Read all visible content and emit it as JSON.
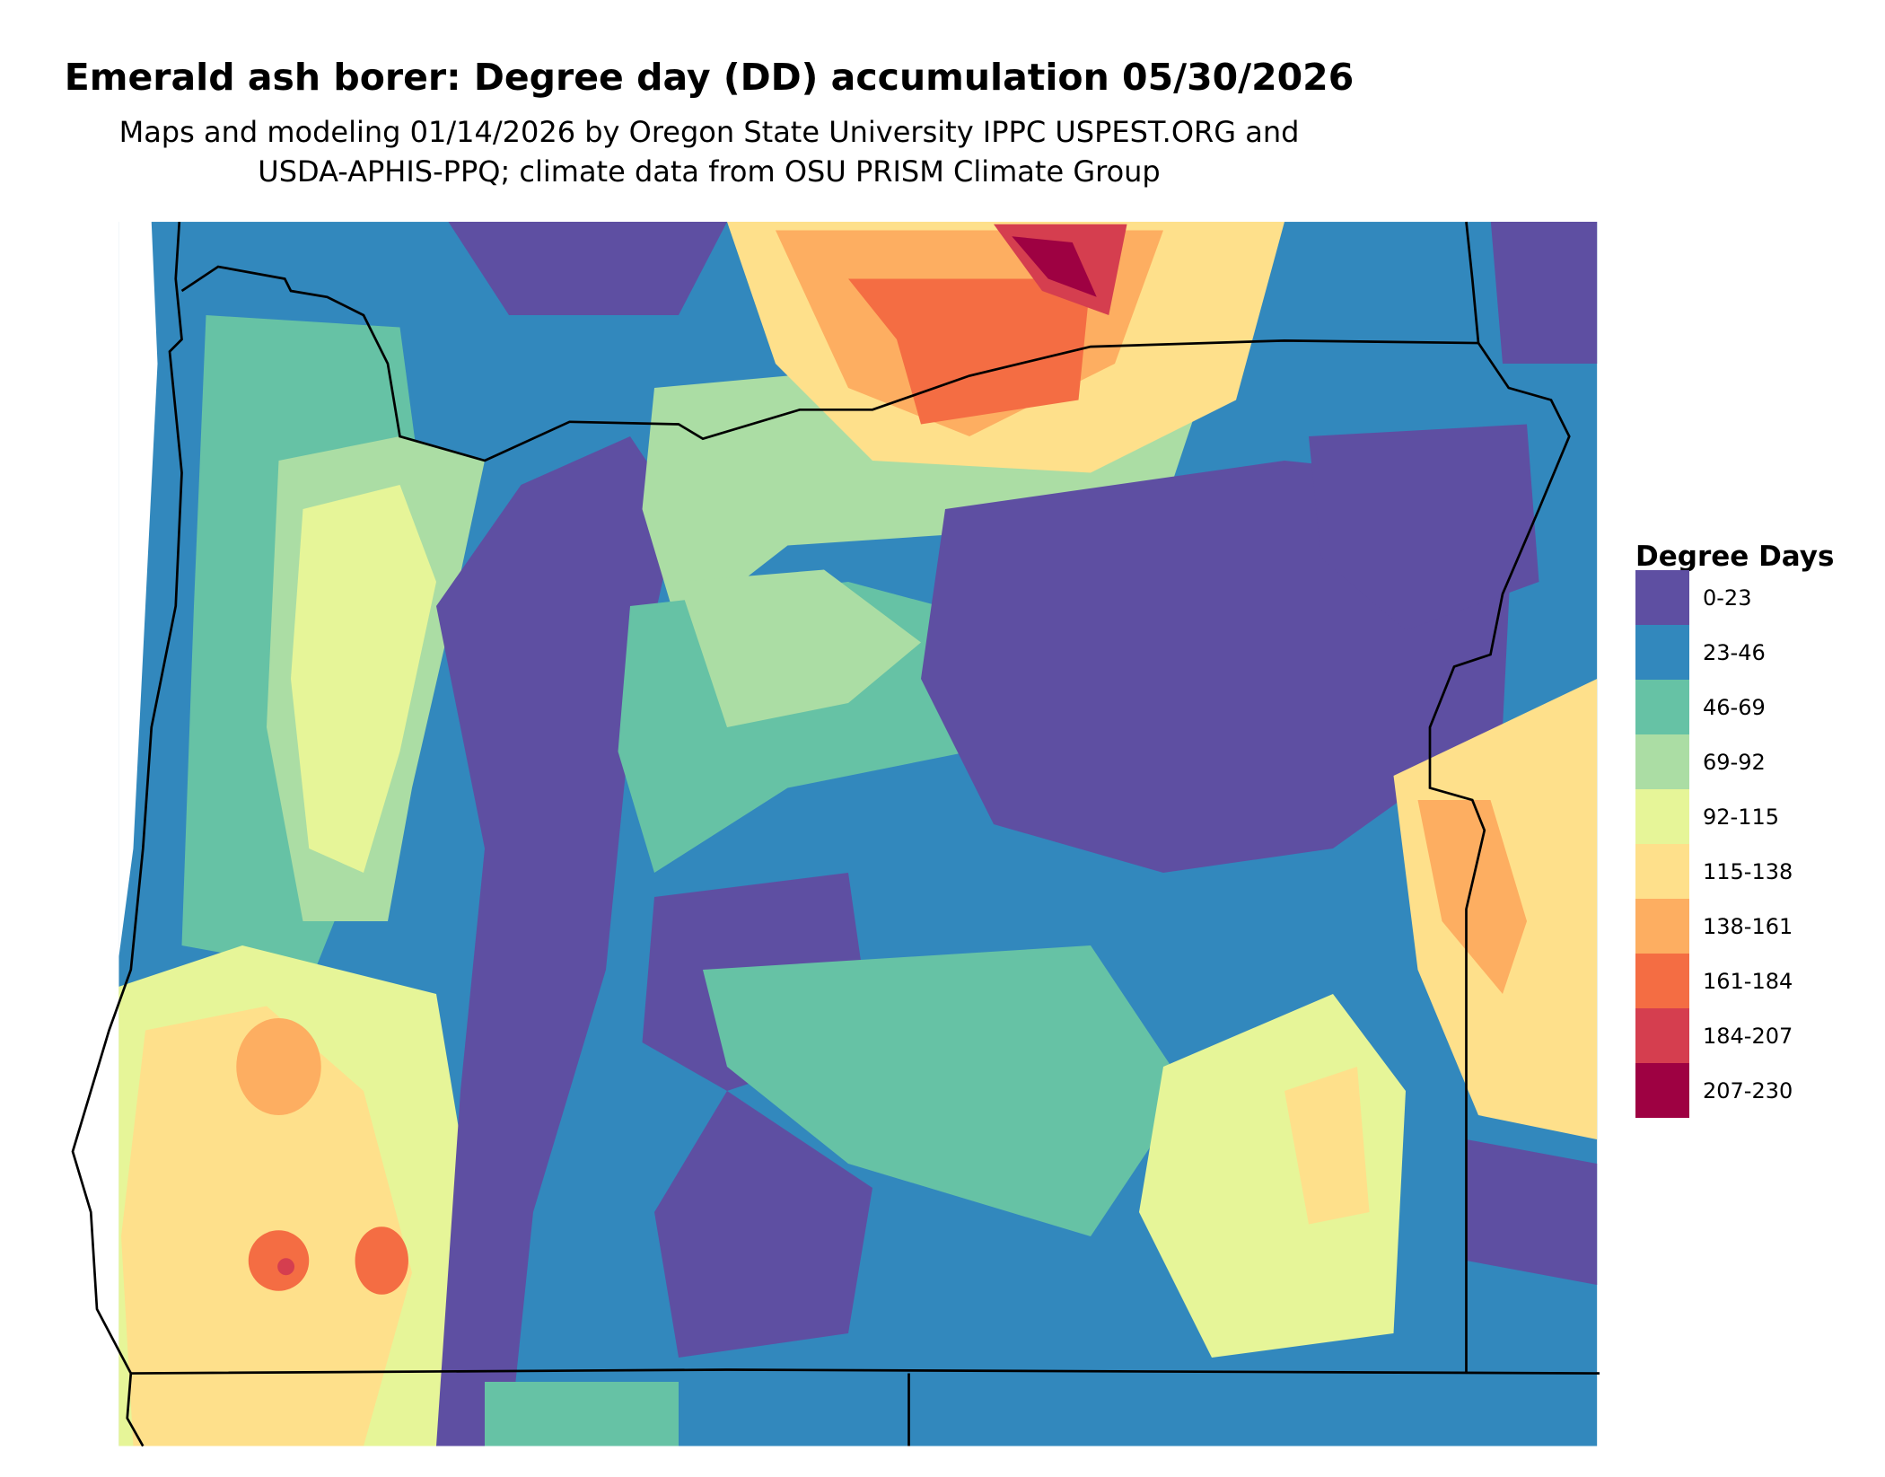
{
  "title": "Emerald ash borer: Degree day (DD) accumulation 05/30/2026",
  "subtitle_line1": "Maps and modeling 01/14/2026 by Oregon State University IPPC USPEST.ORG and",
  "subtitle_line2": "USDA-APHIS-PPQ; climate data from OSU PRISM Climate Group",
  "legend": {
    "title": "Degree Days",
    "items": [
      {
        "label": "0-23",
        "color": "#5e4fa2"
      },
      {
        "label": "23-46",
        "color": "#3288bd"
      },
      {
        "label": "46-69",
        "color": "#66c2a5"
      },
      {
        "label": "69-92",
        "color": "#abdda4"
      },
      {
        "label": "92-115",
        "color": "#e6f598"
      },
      {
        "label": "115-138",
        "color": "#fee08b"
      },
      {
        "label": "138-161",
        "color": "#fdae61"
      },
      {
        "label": "161-184",
        "color": "#f46d43"
      },
      {
        "label": "184-207",
        "color": "#d53e4f"
      },
      {
        "label": "207-230",
        "color": "#9e0142"
      }
    ]
  }
}
